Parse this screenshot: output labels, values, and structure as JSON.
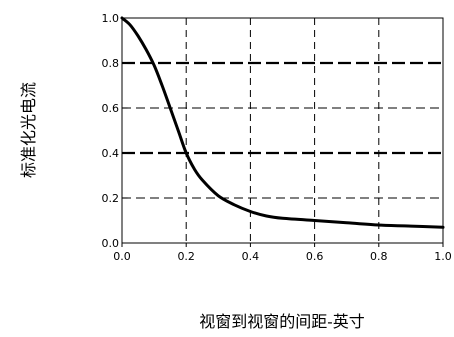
{
  "chart_data": {
    "type": "line",
    "xlabel": "视窗到视窗的间距-英寸",
    "ylabel": "标准化光电流",
    "xlim": [
      0.0,
      1.0
    ],
    "ylim": [
      0.0,
      1.0
    ],
    "xticks": [
      "0.0",
      "0.2",
      "0.4",
      "0.6",
      "0.8",
      "1.0"
    ],
    "yticks": [
      "0.0",
      "0.2",
      "0.4",
      "0.6",
      "0.8",
      "1.0"
    ],
    "grid": true,
    "series": [
      {
        "x": [
          0.0,
          0.025,
          0.05,
          0.075,
          0.1,
          0.125,
          0.15,
          0.175,
          0.2,
          0.225,
          0.25,
          0.3,
          0.35,
          0.4,
          0.45,
          0.5,
          0.6,
          0.7,
          0.8,
          0.9,
          1.0
        ],
        "y": [
          1.0,
          0.97,
          0.92,
          0.86,
          0.79,
          0.7,
          0.6,
          0.5,
          0.4,
          0.33,
          0.28,
          0.21,
          0.17,
          0.14,
          0.12,
          0.11,
          0.1,
          0.09,
          0.08,
          0.075,
          0.07
        ]
      }
    ]
  }
}
